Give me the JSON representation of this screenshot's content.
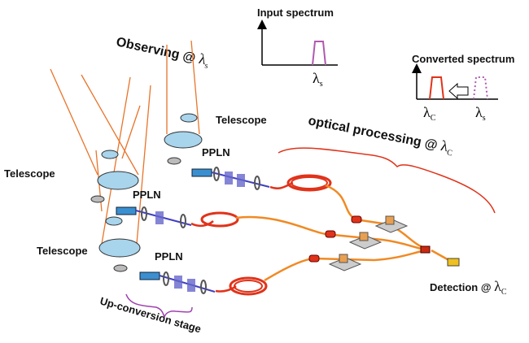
{
  "input_spectrum": {
    "title": "Input spectrum",
    "axis_label": {
      "symbol": "λ",
      "sub": "s"
    }
  },
  "converted_spectrum": {
    "title": "Converted spectrum",
    "labels": [
      {
        "symbol": "λ",
        "sub": "C"
      },
      {
        "symbol": "λ",
        "sub": "s"
      }
    ]
  },
  "observing": {
    "text": "Observing @ ",
    "symbol": "λ",
    "sub": "s"
  },
  "optical_processing": {
    "text": "optical processing @ ",
    "symbol": "λ",
    "sub": "C"
  },
  "detection": {
    "text": "Detection @ ",
    "symbol": "λ",
    "sub": "C"
  },
  "telescopes": [
    {
      "label": "Telescope"
    },
    {
      "label": "Telescope"
    },
    {
      "label": "Telescope"
    }
  ],
  "ppln": [
    {
      "label": "PPLN"
    },
    {
      "label": "PPLN"
    },
    {
      "label": "PPLN"
    }
  ],
  "stage": {
    "label": "Up-conversion stage"
  }
}
